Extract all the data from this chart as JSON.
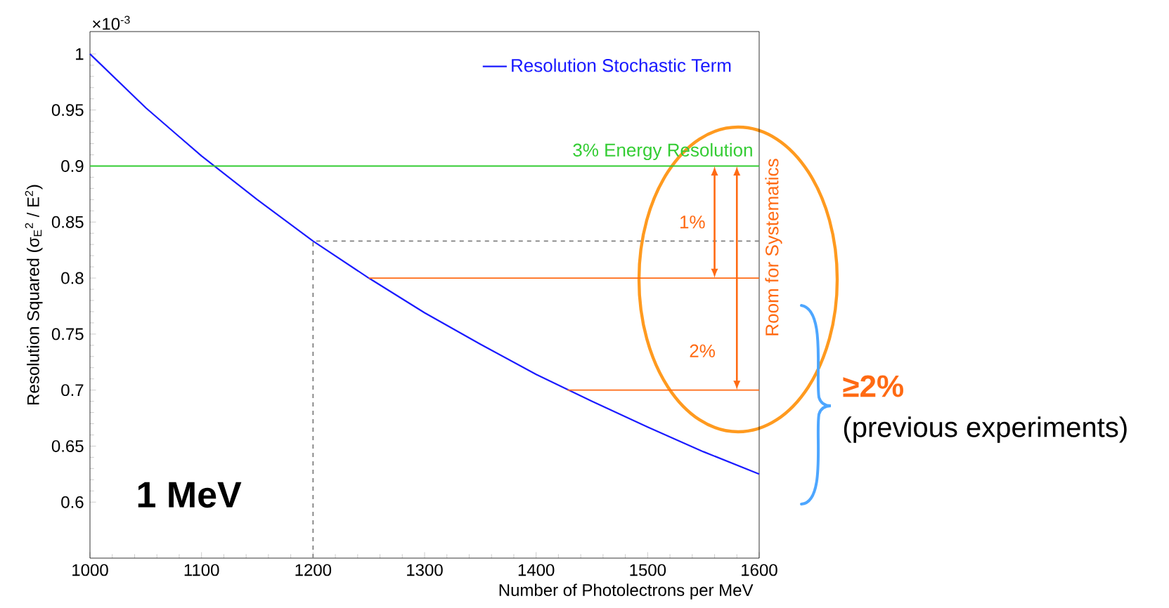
{
  "chart_data": {
    "type": "line",
    "xlabel": "Number of Photolectrons per MeV",
    "ylabel": "Resolution Squared (σ$_{E}$$^{2}$ / E$^{2}$)",
    "xlim": [
      1000,
      1600
    ],
    "ylim": [
      0.55,
      1.02
    ],
    "xticks": [
      1000,
      1100,
      1200,
      1300,
      1400,
      1500,
      1600
    ],
    "yticks": [
      0.6,
      0.65,
      0.7,
      0.75,
      0.8,
      0.85,
      0.9,
      0.95,
      1
    ],
    "legend": "top right",
    "grid": false,
    "series": [
      {
        "name": "Resolution Stochastic Term",
        "color": "#1a1aff",
        "x": [
          1000,
          1050,
          1100,
          1150,
          1200,
          1250,
          1300,
          1350,
          1400,
          1450,
          1500,
          1550,
          1600
        ],
        "values": [
          1.0,
          0.952,
          0.909,
          0.87,
          0.833,
          0.8,
          0.769,
          0.741,
          0.714,
          0.69,
          0.667,
          0.645,
          0.625
        ]
      },
      {
        "color": "#808080",
        "line_style": "dashed",
        "x": [
          1200,
          1200,
          1600
        ],
        "values": [
          0.55,
          0.833,
          0.833
        ]
      },
      {
        "color": "#ff6a13",
        "x": [
          1250,
          1600
        ],
        "values": [
          0.8,
          0.8
        ]
      },
      {
        "color": "#ff6a13",
        "x": [
          1428,
          1600
        ],
        "values": [
          0.7,
          0.7
        ]
      }
    ],
    "ref_lines": [
      {
        "axis": "y",
        "value": 0.9,
        "label": "3% Energy Resolution",
        "color": "#33cc33"
      }
    ],
    "annotations": [
      "×10$^{-3}$",
      "1%",
      "2%",
      "Room for Systematics",
      "≥2%",
      "(previous experiments)",
      "1 MeV"
    ]
  }
}
